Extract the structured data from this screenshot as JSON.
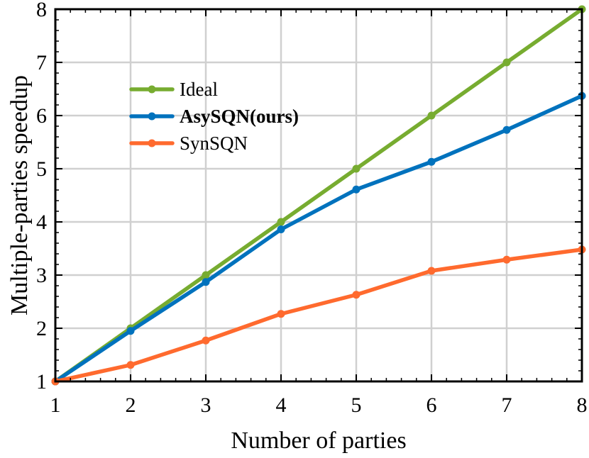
{
  "chart_data": {
    "type": "line",
    "title": "",
    "xlabel": "Number of parties",
    "ylabel": "Multiple-parties speedup",
    "x": [
      1,
      2,
      3,
      4,
      5,
      6,
      7,
      8
    ],
    "xlim": [
      1,
      8
    ],
    "ylim": [
      1,
      8
    ],
    "xticks": [
      "1",
      "2",
      "3",
      "4",
      "5",
      "6",
      "7",
      "8"
    ],
    "yticks": [
      "1",
      "2",
      "3",
      "4",
      "5",
      "6",
      "7",
      "8"
    ],
    "grid": true,
    "legend_position": "top-left",
    "series": [
      {
        "name": "Ideal",
        "color": "#77AC30",
        "bold": false,
        "values": [
          1,
          2,
          3,
          4,
          5,
          6,
          7,
          8
        ]
      },
      {
        "name": "AsySQN(ours)",
        "color": "#0072BD",
        "bold": true,
        "values": [
          1,
          1.95,
          2.87,
          3.86,
          4.61,
          5.13,
          5.73,
          6.37
        ]
      },
      {
        "name": "SynSQN",
        "color": "#FF6A2E",
        "bold": false,
        "values": [
          1,
          1.31,
          1.77,
          2.27,
          2.63,
          3.08,
          3.29,
          3.48
        ]
      }
    ]
  }
}
